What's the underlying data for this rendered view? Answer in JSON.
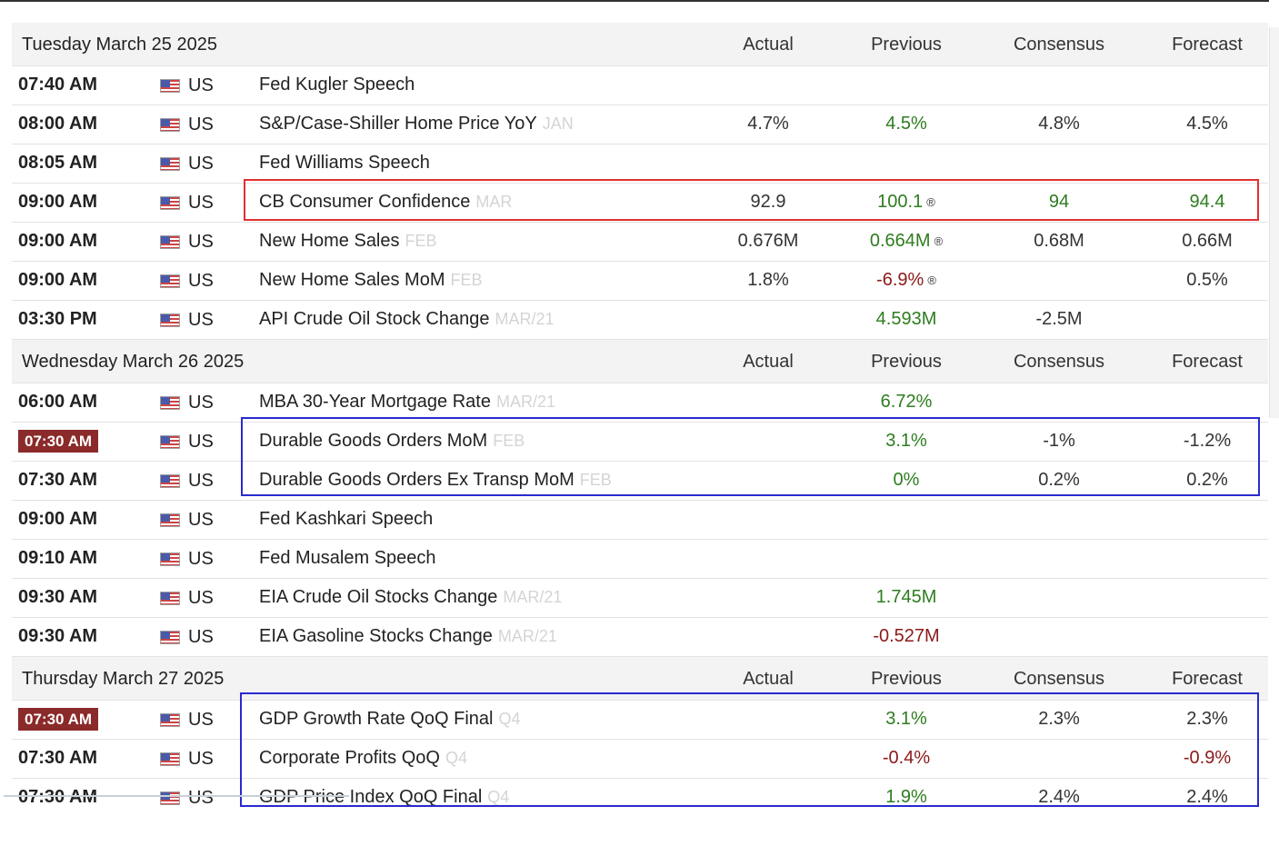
{
  "columns": {
    "actual": "Actual",
    "previous": "Previous",
    "consensus": "Consensus",
    "forecast": "Forecast"
  },
  "days": [
    {
      "date": "Tuesday March 25 2025",
      "events": [
        {
          "time": "07:40 AM",
          "country": "US",
          "event": "Fed Kugler Speech",
          "ref": "",
          "actual": "",
          "previous": "",
          "consensus": "",
          "forecast": ""
        },
        {
          "time": "08:00 AM",
          "country": "US",
          "event": "S&P/Case-Shiller Home Price YoY",
          "ref": "JAN",
          "actual": "4.7%",
          "previous": "4.5%",
          "consensus": "4.8%",
          "forecast": "4.5%"
        },
        {
          "time": "08:05 AM",
          "country": "US",
          "event": "Fed Williams Speech",
          "ref": "",
          "actual": "",
          "previous": "",
          "consensus": "",
          "forecast": ""
        },
        {
          "time": "09:00 AM",
          "country": "US",
          "event": "CB Consumer Confidence",
          "ref": "MAR",
          "actual": "92.9",
          "previous": "100.1",
          "consensus": "94",
          "forecast": "94.4"
        },
        {
          "time": "09:00 AM",
          "country": "US",
          "event": "New Home Sales",
          "ref": "FEB",
          "actual": "0.676M",
          "previous": "0.664M",
          "consensus": "0.68M",
          "forecast": "0.66M"
        },
        {
          "time": "09:00 AM",
          "country": "US",
          "event": "New Home Sales MoM",
          "ref": "FEB",
          "actual": "1.8%",
          "previous": "-6.9%",
          "consensus": "",
          "forecast": "0.5%"
        },
        {
          "time": "03:30 PM",
          "country": "US",
          "event": "API Crude Oil Stock Change",
          "ref": "MAR/21",
          "actual": "",
          "previous": "4.593M",
          "consensus": "-2.5M",
          "forecast": ""
        }
      ]
    },
    {
      "date": "Wednesday March 26 2025",
      "events": [
        {
          "time": "06:00 AM",
          "country": "US",
          "event": "MBA 30-Year Mortgage Rate",
          "ref": "MAR/21",
          "actual": "",
          "previous": "6.72%",
          "consensus": "",
          "forecast": ""
        },
        {
          "time": "07:30 AM",
          "country": "US",
          "event": "Durable Goods Orders MoM",
          "ref": "FEB",
          "actual": "",
          "previous": "3.1%",
          "consensus": "-1%",
          "forecast": "-1.2%"
        },
        {
          "time": "07:30 AM",
          "country": "US",
          "event": "Durable Goods Orders Ex Transp MoM",
          "ref": "FEB",
          "actual": "",
          "previous": "0%",
          "consensus": "0.2%",
          "forecast": "0.2%"
        },
        {
          "time": "09:00 AM",
          "country": "US",
          "event": "Fed Kashkari Speech",
          "ref": "",
          "actual": "",
          "previous": "",
          "consensus": "",
          "forecast": ""
        },
        {
          "time": "09:10 AM",
          "country": "US",
          "event": "Fed Musalem Speech",
          "ref": "",
          "actual": "",
          "previous": "",
          "consensus": "",
          "forecast": ""
        },
        {
          "time": "09:30 AM",
          "country": "US",
          "event": "EIA Crude Oil Stocks Change",
          "ref": "MAR/21",
          "actual": "",
          "previous": "1.745M",
          "consensus": "",
          "forecast": ""
        },
        {
          "time": "09:30 AM",
          "country": "US",
          "event": "EIA Gasoline Stocks Change",
          "ref": "MAR/21",
          "actual": "",
          "previous": "-0.527M",
          "consensus": "",
          "forecast": ""
        }
      ]
    },
    {
      "date": "Thursday March 27 2025",
      "events": [
        {
          "time": "07:30 AM",
          "country": "US",
          "event": "GDP Growth Rate QoQ Final",
          "ref": "Q4",
          "actual": "",
          "previous": "3.1%",
          "consensus": "2.3%",
          "forecast": "2.3%"
        },
        {
          "time": "07:30 AM",
          "country": "US",
          "event": "Corporate Profits QoQ",
          "ref": "Q4",
          "actual": "",
          "previous": "-0.4%",
          "consensus": "",
          "forecast": "-0.9%"
        },
        {
          "time": "07:30 AM",
          "country": "US",
          "event": "GDP Price Index QoQ Final",
          "ref": "Q4",
          "actual": "",
          "previous": "1.9%",
          "consensus": "2.4%",
          "forecast": "2.4%"
        }
      ]
    }
  ],
  "revised_marker": "®",
  "value_colors": {
    "positive": "#2e7d1f",
    "negative": "#8b1a1a",
    "neutral": "#333333"
  },
  "time_badge_color": "#8b2a2a",
  "highlight_colors": {
    "red": "#e03030",
    "blue": "#2a2ad0"
  }
}
